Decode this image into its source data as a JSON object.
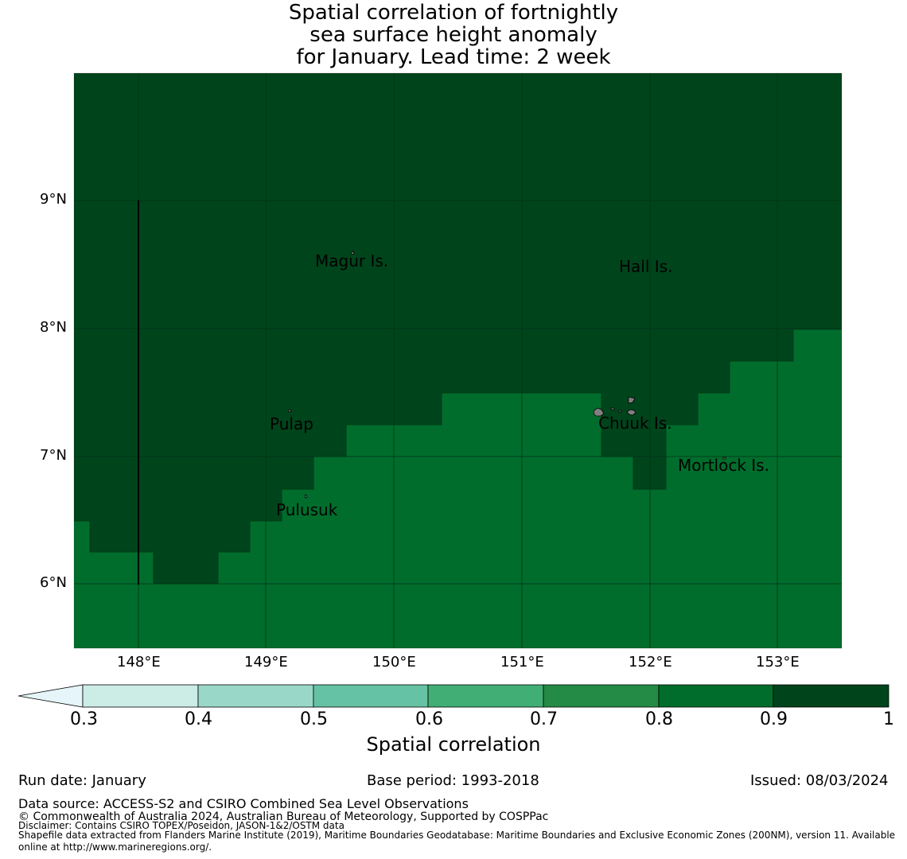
{
  "title": {
    "line1": "Spatial correlation of fortnightly",
    "line2": "sea surface height anomaly",
    "line3": "for January. Lead time: 2 week"
  },
  "map": {
    "lat_labels": [
      "9°N",
      "8°N",
      "7°N",
      "6°N"
    ],
    "lon_labels": [
      "148°E",
      "149°E",
      "150°E",
      "151°E",
      "152°E",
      "153°E"
    ],
    "lat_range": [
      5.5,
      10.0
    ],
    "lon_range": [
      147.5,
      153.5
    ],
    "places": [
      {
        "name": "Magur Is."
      },
      {
        "name": "Hall Is."
      },
      {
        "name": "Pulap"
      },
      {
        "name": "Chuuk Is."
      },
      {
        "name": "Mortlock Is."
      },
      {
        "name": "Pulusuk"
      }
    ],
    "colors": {
      "corr_0_9_to_1": "#00441b",
      "corr_0_8_to_0_9": "#006d2c",
      "land": "#808080",
      "gridline": "#00331a"
    }
  },
  "colorbar": {
    "ticks": [
      "0.3",
      "0.4",
      "0.5",
      "0.6",
      "0.7",
      "0.8",
      "0.9",
      "1"
    ],
    "colors": [
      "#e5f5f9",
      "#ccece6",
      "#99d8c9",
      "#66c2a4",
      "#41ae76",
      "#238b45",
      "#006d2c",
      "#00441b"
    ],
    "label": "Spatial correlation"
  },
  "footer": {
    "run_date": "Run date: January",
    "base_period": "Base period: 1993-2018",
    "issued": "Issued: 08/03/2024",
    "data_source": "Data source: ACCESS-S2 and CSIRO Combined Sea Level Observations",
    "copyright": "© Commonwealth of Australia 2024, Australian Bureau of Meteorology, Supported by COSPPac",
    "disclaimer": "Disclaimer: Contains CSIRO TOPEX/Poseidon, JASON-1&2/OSTM data",
    "shapefile_1": "Shapefile data extracted from Flanders Marine Institute (2019), Maritime Boundaries Geodatabase: Maritime Boundaries and Exclusive Economic Zones (200NM), version 11. Available",
    "shapefile_2": "online at http://www.marineregions.org/."
  }
}
